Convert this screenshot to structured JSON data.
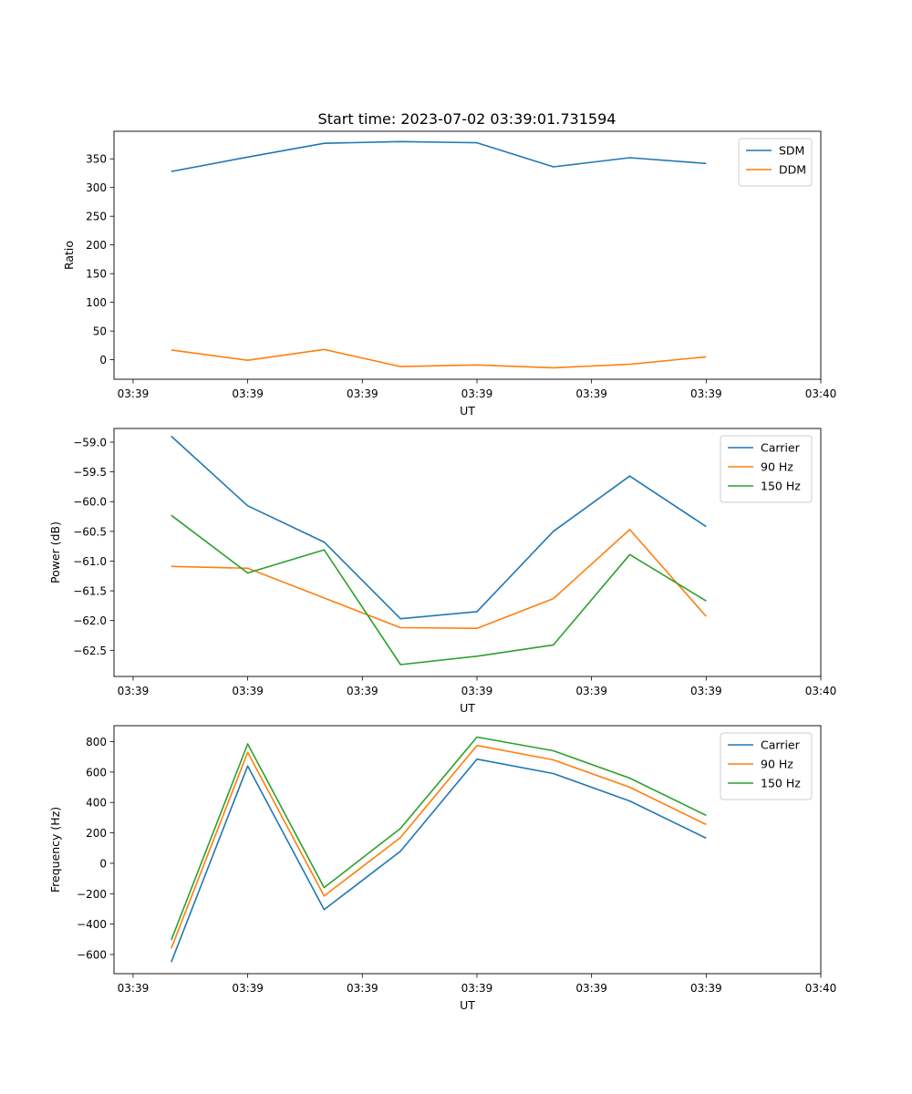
{
  "figure": {
    "title": "Start time: 2023-07-02 03:39:01.731594"
  },
  "colors": {
    "blue": "#1f77b4",
    "orange": "#ff7f0e",
    "green": "#2ca02c"
  },
  "chart_data": [
    {
      "id": "ratio",
      "type": "line",
      "title": "Start time: 2023-07-02 03:39:01.731594",
      "xlabel": "UT",
      "ylabel": "Ratio",
      "x": [
        1,
        2,
        3,
        4,
        5,
        6,
        7,
        8
      ],
      "xlim": [
        0.25,
        9.5
      ],
      "xticks": [
        0.5,
        2,
        3.5,
        5,
        6.5,
        8,
        9.5
      ],
      "xtick_labels": [
        "03:39",
        "03:39",
        "03:39",
        "03:39",
        "03:39",
        "03:39",
        "03:40"
      ],
      "ylim": [
        -34,
        398
      ],
      "yticks": [
        0,
        50,
        100,
        150,
        200,
        250,
        300,
        350
      ],
      "ytick_labels": [
        "0",
        "50",
        "100",
        "150",
        "200",
        "250",
        "300",
        "350"
      ],
      "legend_position": "top-right",
      "series": [
        {
          "name": "SDM",
          "color": "#1f77b4",
          "values": [
            328,
            353,
            377,
            380,
            378,
            336,
            352,
            342
          ]
        },
        {
          "name": "DDM",
          "color": "#ff7f0e",
          "values": [
            17,
            -1,
            18,
            -12,
            -9,
            -14,
            -8,
            5
          ]
        }
      ]
    },
    {
      "id": "power",
      "type": "line",
      "xlabel": "UT",
      "ylabel": "Power (dB)",
      "x": [
        1,
        2,
        3,
        4,
        5,
        6,
        7,
        8
      ],
      "xlim": [
        0.25,
        9.5
      ],
      "xticks": [
        0.5,
        2,
        3.5,
        5,
        6.5,
        8,
        9.5
      ],
      "xtick_labels": [
        "03:39",
        "03:39",
        "03:39",
        "03:39",
        "03:39",
        "03:39",
        "03:40"
      ],
      "ylim": [
        -62.94,
        -58.77
      ],
      "yticks": [
        -62.5,
        -62.0,
        -61.5,
        -61.0,
        -60.5,
        -60.0,
        -59.5,
        -59.0
      ],
      "ytick_labels": [
        "−62.5",
        "−62.0",
        "−61.5",
        "−61.0",
        "−60.5",
        "−60.0",
        "−59.5",
        "−59.0"
      ],
      "legend_position": "top-right",
      "series": [
        {
          "name": "Carrier",
          "color": "#1f77b4",
          "values": [
            -58.9,
            -60.07,
            -60.68,
            -61.97,
            -61.85,
            -60.5,
            -59.57,
            -60.42
          ]
        },
        {
          "name": "90 Hz",
          "color": "#ff7f0e",
          "values": [
            -61.09,
            -61.12,
            -61.62,
            -62.12,
            -62.13,
            -61.63,
            -60.47,
            -61.93
          ]
        },
        {
          "name": "150 Hz",
          "color": "#2ca02c",
          "values": [
            -60.23,
            -61.2,
            -60.81,
            -62.74,
            -62.6,
            -62.41,
            -60.89,
            -61.67
          ]
        }
      ]
    },
    {
      "id": "frequency",
      "type": "line",
      "xlabel": "UT",
      "ylabel": "Frequency (Hz)",
      "x": [
        1,
        2,
        3,
        4,
        5,
        6,
        7,
        8
      ],
      "xlim": [
        0.25,
        9.5
      ],
      "xticks": [
        0.5,
        2,
        3.5,
        5,
        6.5,
        8,
        9.5
      ],
      "xtick_labels": [
        "03:39",
        "03:39",
        "03:39",
        "03:39",
        "03:39",
        "03:39",
        "03:40"
      ],
      "ylim": [
        -726,
        905
      ],
      "yticks": [
        -600,
        -400,
        -200,
        0,
        200,
        400,
        600,
        800
      ],
      "ytick_labels": [
        "−600",
        "−400",
        "−200",
        "0",
        "200",
        "400",
        "600",
        "800"
      ],
      "legend_position": "top-right",
      "series": [
        {
          "name": "Carrier",
          "color": "#1f77b4",
          "values": [
            -650,
            640,
            -305,
            80,
            685,
            590,
            410,
            165
          ]
        },
        {
          "name": "90 Hz",
          "color": "#ff7f0e",
          "values": [
            -560,
            730,
            -215,
            170,
            775,
            680,
            500,
            255
          ]
        },
        {
          "name": "150 Hz",
          "color": "#2ca02c",
          "values": [
            -505,
            785,
            -160,
            230,
            830,
            740,
            560,
            315
          ]
        }
      ]
    }
  ]
}
